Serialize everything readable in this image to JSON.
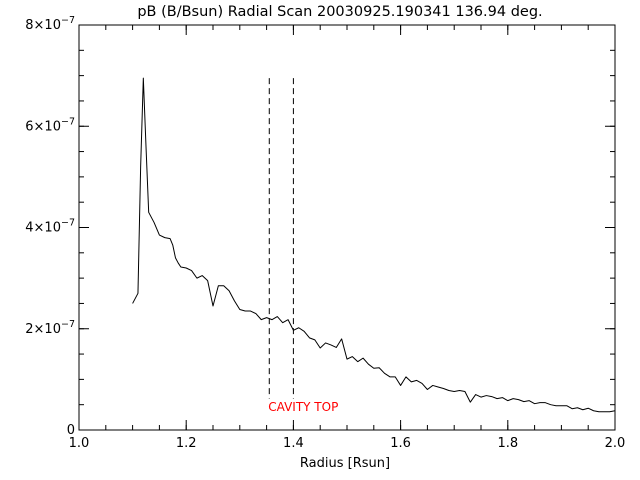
{
  "chart_data": {
    "type": "line",
    "title": "pB (B/Bsun) Radial Scan 20030925.190341 136.94 deg.",
    "xlabel": "Radius [Rsun]",
    "ylabel": "",
    "xlim": [
      1.0,
      2.0
    ],
    "ylim": [
      0,
      8e-07
    ],
    "x_ticks": [
      {
        "value": 1.0,
        "label": "1.0"
      },
      {
        "value": 1.2,
        "label": "1.2"
      },
      {
        "value": 1.4,
        "label": "1.4"
      },
      {
        "value": 1.6,
        "label": "1.6"
      },
      {
        "value": 1.8,
        "label": "1.8"
      },
      {
        "value": 2.0,
        "label": "2.0"
      }
    ],
    "y_ticks": [
      {
        "value": 0,
        "mant": "0",
        "exp": ""
      },
      {
        "value": 2e-07,
        "mant": "2×10",
        "exp": "−7"
      },
      {
        "value": 4e-07,
        "mant": "4×10",
        "exp": "−7"
      },
      {
        "value": 6e-07,
        "mant": "6×10",
        "exp": "−7"
      },
      {
        "value": 8e-07,
        "mant": "8×10",
        "exp": "−7"
      }
    ],
    "x_minor_step": 0.05,
    "y_minor_step": 5e-08,
    "grid": false,
    "line_color": "#000000",
    "series": [
      {
        "x": [
          1.1,
          1.11,
          1.115,
          1.12,
          1.125,
          1.13,
          1.14,
          1.15,
          1.16,
          1.17,
          1.175,
          1.18,
          1.185,
          1.19,
          1.2,
          1.21,
          1.22,
          1.23,
          1.24,
          1.25,
          1.26,
          1.27,
          1.28,
          1.29,
          1.3,
          1.31,
          1.32,
          1.33,
          1.34,
          1.35,
          1.36,
          1.37,
          1.38,
          1.39,
          1.4,
          1.41,
          1.42,
          1.43,
          1.44,
          1.45,
          1.46,
          1.47,
          1.48,
          1.49,
          1.5,
          1.51,
          1.52,
          1.53,
          1.54,
          1.55,
          1.56,
          1.57,
          1.58,
          1.59,
          1.6,
          1.61,
          1.62,
          1.63,
          1.64,
          1.65,
          1.66,
          1.67,
          1.68,
          1.69,
          1.7,
          1.71,
          1.72,
          1.73,
          1.74,
          1.75,
          1.76,
          1.77,
          1.78,
          1.79,
          1.8,
          1.81,
          1.82,
          1.83,
          1.84,
          1.85,
          1.86,
          1.87,
          1.88,
          1.89,
          1.9,
          1.91,
          1.92,
          1.93,
          1.94,
          1.95,
          1.96,
          1.97,
          1.98,
          1.99,
          2.0
        ],
        "y": [
          2.5e-07,
          2.7e-07,
          5.2e-07,
          6.95e-07,
          5.6e-07,
          4.3e-07,
          4.1e-07,
          3.85e-07,
          3.8e-07,
          3.78e-07,
          3.65e-07,
          3.4e-07,
          3.3e-07,
          3.22e-07,
          3.2e-07,
          3.15e-07,
          3e-07,
          3.05e-07,
          2.95e-07,
          2.45e-07,
          2.85e-07,
          2.85e-07,
          2.75e-07,
          2.55e-07,
          2.38e-07,
          2.35e-07,
          2.35e-07,
          2.3e-07,
          2.18e-07,
          2.22e-07,
          2.18e-07,
          2.24e-07,
          2.12e-07,
          2.18e-07,
          1.97e-07,
          2.02e-07,
          1.95e-07,
          1.82e-07,
          1.78e-07,
          1.62e-07,
          1.72e-07,
          1.68e-07,
          1.63e-07,
          1.8e-07,
          1.4e-07,
          1.45e-07,
          1.35e-07,
          1.42e-07,
          1.3e-07,
          1.22e-07,
          1.23e-07,
          1.12e-07,
          1.05e-07,
          1.05e-07,
          8.8e-08,
          1.05e-07,
          9.5e-08,
          9.8e-08,
          9.2e-08,
          8e-08,
          8.8e-08,
          8.5e-08,
          8.2e-08,
          7.8e-08,
          7.6e-08,
          7.8e-08,
          7.6e-08,
          5.5e-08,
          7e-08,
          6.5e-08,
          6.8e-08,
          6.6e-08,
          6.2e-08,
          6.4e-08,
          5.8e-08,
          6.2e-08,
          6e-08,
          5.6e-08,
          5.8e-08,
          5.2e-08,
          5.4e-08,
          5.4e-08,
          5e-08,
          4.8e-08,
          4.8e-08,
          4.8e-08,
          4.2e-08,
          4.4e-08,
          4e-08,
          4.3e-08,
          3.8e-08,
          3.6e-08,
          3.6e-08,
          3.6e-08,
          3.8e-08
        ]
      }
    ],
    "markers": [
      {
        "x": 1.355,
        "y_top": 6.95e-07,
        "y_bottom": 6.2e-08,
        "style": "dashed"
      },
      {
        "x": 1.4,
        "y_top": 6.95e-07,
        "y_bottom": 6.2e-08,
        "style": "dashed"
      }
    ],
    "annotations": [
      {
        "text": "CAVITY TOP",
        "x": 1.355,
        "y": 4.5e-08,
        "color": "#ff0000"
      }
    ]
  }
}
